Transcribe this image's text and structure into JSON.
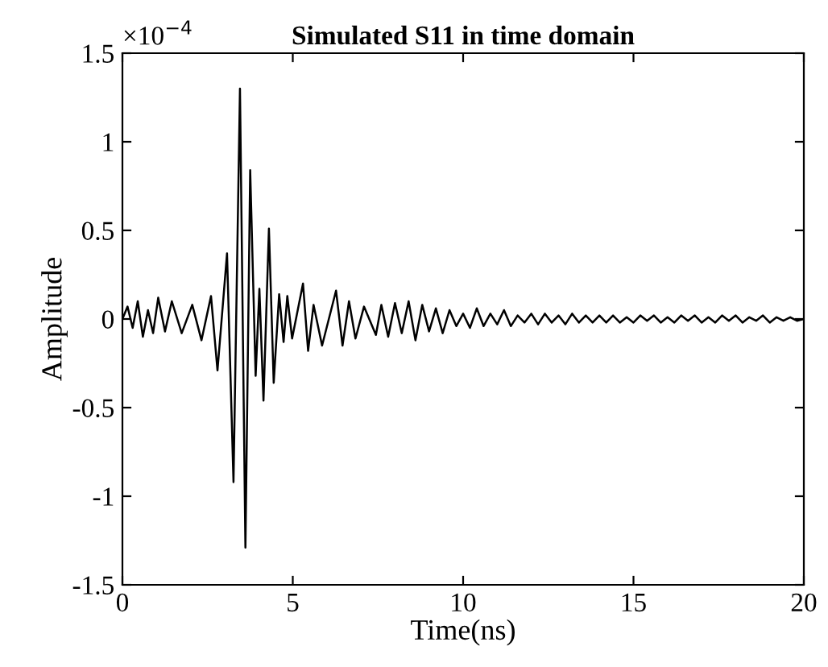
{
  "chart_data": {
    "type": "line",
    "title": "Simulated S11 in time domain",
    "xlabel": "Time(ns)",
    "ylabel": "Amplitude",
    "annotations": [
      "×10$^{−4}$"
    ],
    "x": [
      0,
      0.15,
      0.3,
      0.45,
      0.6,
      0.75,
      0.9,
      1.05,
      1.25,
      1.45,
      1.74,
      2.05,
      2.32,
      2.6,
      2.79,
      3.07,
      3.26,
      3.45,
      3.61,
      3.75,
      3.91,
      4.02,
      4.14,
      4.3,
      4.44,
      4.6,
      4.73,
      4.84,
      4.98,
      5.3,
      5.45,
      5.61,
      5.86,
      6.27,
      6.46,
      6.65,
      6.84,
      7.09,
      7.44,
      7.6,
      7.8,
      8.0,
      8.2,
      8.4,
      8.6,
      8.8,
      9.0,
      9.2,
      9.4,
      9.6,
      9.8,
      10.0,
      10.2,
      10.4,
      10.6,
      10.8,
      11.0,
      11.2,
      11.4,
      11.6,
      11.8,
      12.0,
      12.2,
      12.4,
      12.6,
      12.8,
      13.0,
      13.2,
      13.4,
      13.6,
      13.8,
      14.0,
      14.2,
      14.4,
      14.6,
      14.8,
      15.0,
      15.2,
      15.4,
      15.6,
      15.8,
      16.0,
      16.2,
      16.4,
      16.6,
      16.8,
      17.0,
      17.2,
      17.4,
      17.6,
      17.8,
      18.0,
      18.2,
      18.4,
      18.6,
      18.8,
      19.0,
      19.2,
      19.4,
      19.6,
      19.8,
      20.0
    ],
    "series": [
      {
        "color": "#000000",
        "values": [
          0,
          0.07,
          -0.05,
          0.1,
          -0.1,
          0.05,
          -0.08,
          0.12,
          -0.07,
          0.1,
          -0.08,
          0.08,
          -0.12,
          0.13,
          -0.29,
          0.37,
          -0.92,
          1.3,
          -1.29,
          0.84,
          -0.32,
          0.17,
          -0.46,
          0.51,
          -0.36,
          0.14,
          -0.13,
          0.13,
          -0.11,
          0.2,
          -0.18,
          0.08,
          -0.15,
          0.16,
          -0.15,
          0.1,
          -0.11,
          0.07,
          -0.09,
          0.08,
          -0.1,
          0.09,
          -0.08,
          0.1,
          -0.12,
          0.08,
          -0.07,
          0.06,
          -0.08,
          0.05,
          -0.04,
          0.03,
          -0.05,
          0.06,
          -0.04,
          0.03,
          -0.03,
          0.05,
          -0.04,
          0.02,
          -0.02,
          0.03,
          -0.03,
          0.03,
          -0.02,
          0.02,
          -0.03,
          0.03,
          -0.02,
          0.02,
          -0.02,
          0.02,
          -0.02,
          0.02,
          -0.02,
          0.01,
          -0.02,
          0.02,
          -0.01,
          0.02,
          -0.02,
          0.01,
          -0.02,
          0.02,
          -0.01,
          0.02,
          -0.02,
          0.01,
          -0.02,
          0.02,
          -0.01,
          0.02,
          -0.02,
          0.01,
          -0.01,
          0.02,
          -0.02,
          0.01,
          -0.01,
          0.01,
          -0.01,
          0
        ]
      }
    ],
    "xlim": [
      0,
      20
    ],
    "xticks": [
      0,
      5,
      10,
      15,
      20
    ],
    "ylim": [
      -1.5,
      1.5
    ],
    "yticks": [
      -1.5,
      -1,
      -0.5,
      0,
      0.5,
      1,
      1.5
    ],
    "grid": false,
    "legend": false,
    "line_style": "solid",
    "marker": "none"
  }
}
